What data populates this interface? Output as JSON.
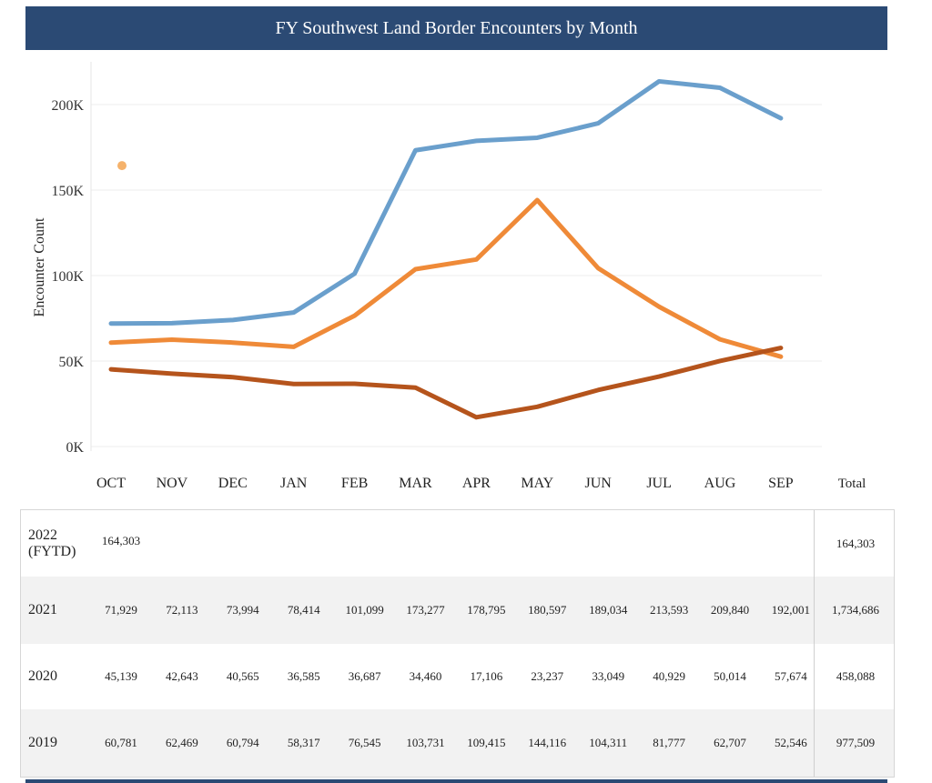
{
  "title": "FY Southwest Land Border Encounters by Month",
  "chart_data": {
    "type": "line",
    "title": "FY Southwest Land Border Encounters by Month",
    "xlabel": "",
    "ylabel": "Encounter Count",
    "categories": [
      "OCT",
      "NOV",
      "DEC",
      "JAN",
      "FEB",
      "MAR",
      "APR",
      "MAY",
      "JUN",
      "JUL",
      "AUG",
      "SEP"
    ],
    "ylim": [
      0,
      225000
    ],
    "yticks": [
      0,
      50000,
      100000,
      150000,
      200000
    ],
    "ytick_labels": [
      "0K",
      "50K",
      "100K",
      "150K",
      "200K"
    ],
    "grid": true,
    "series": [
      {
        "name": "2022 (FYTD)",
        "color": "#f5b26b",
        "values": [
          164303,
          null,
          null,
          null,
          null,
          null,
          null,
          null,
          null,
          null,
          null,
          null
        ]
      },
      {
        "name": "2021",
        "color": "#6a9fcc",
        "values": [
          71929,
          72113,
          73994,
          78414,
          101099,
          173277,
          178795,
          180597,
          189034,
          213593,
          209840,
          192001
        ]
      },
      {
        "name": "2020",
        "color": "#b5541c",
        "values": [
          45139,
          42643,
          40565,
          36585,
          36687,
          34460,
          17106,
          23237,
          33049,
          40929,
          50014,
          57674
        ]
      },
      {
        "name": "2019",
        "color": "#ef8a38",
        "values": [
          60781,
          62469,
          60794,
          58317,
          76545,
          103731,
          109415,
          144116,
          104311,
          81777,
          62707,
          52546
        ]
      }
    ]
  },
  "table": {
    "total_header": "Total",
    "rows": [
      {
        "label": "2022 (FYTD)",
        "values": [
          "164,303",
          "",
          "",
          "",
          "",
          "",
          "",
          "",
          "",
          "",
          "",
          ""
        ],
        "total": "164,303"
      },
      {
        "label": "2021",
        "values": [
          "71,929",
          "72,113",
          "73,994",
          "78,414",
          "101,099",
          "173,277",
          "178,795",
          "180,597",
          "189,034",
          "213,593",
          "209,840",
          "192,001"
        ],
        "total": "1,734,686"
      },
      {
        "label": "2020",
        "values": [
          "45,139",
          "42,643",
          "40,565",
          "36,585",
          "36,687",
          "34,460",
          "17,106",
          "23,237",
          "33,049",
          "40,929",
          "50,014",
          "57,674"
        ],
        "total": "458,088"
      },
      {
        "label": "2019",
        "values": [
          "60,781",
          "62,469",
          "60,794",
          "58,317",
          "76,545",
          "103,731",
          "109,415",
          "144,116",
          "104,311",
          "81,777",
          "62,707",
          "52,546"
        ],
        "total": "977,509"
      }
    ]
  }
}
